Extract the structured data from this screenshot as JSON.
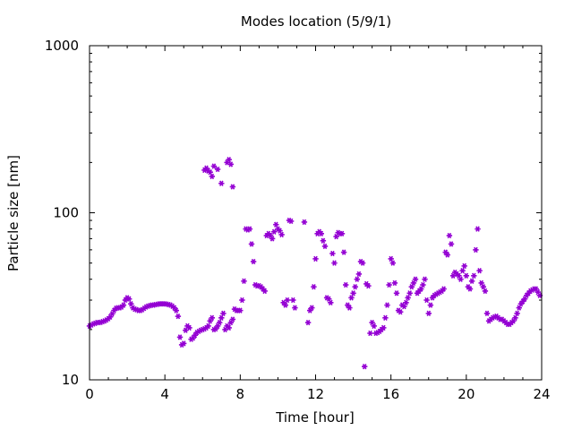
{
  "chart_data": {
    "type": "scatter",
    "title": "Modes location (5/9/1)",
    "xlabel": "Time [hour]",
    "ylabel": "Particle size [nm]",
    "xlim": [
      0,
      24
    ],
    "ylim": [
      10,
      1000
    ],
    "yscale": "log",
    "x_ticks": [
      0,
      4,
      8,
      12,
      16,
      20,
      24
    ],
    "x_tick_labels": [
      "0",
      "4",
      "8",
      "12",
      "16",
      "20",
      "24"
    ],
    "y_ticks": [
      10,
      100,
      1000
    ],
    "y_tick_labels": [
      "10",
      "100",
      "1000"
    ],
    "grid": false,
    "legend": "none",
    "marker_color": "#9400d3",
    "series": [
      {
        "points": [
          [
            0.0,
            21
          ],
          [
            0.1,
            21.3
          ],
          [
            0.2,
            21.6
          ],
          [
            0.3,
            21.8
          ],
          [
            0.4,
            22
          ],
          [
            0.5,
            22
          ],
          [
            0.6,
            22.1
          ],
          [
            0.7,
            22.3
          ],
          [
            0.8,
            22.5
          ],
          [
            0.9,
            22.8
          ],
          [
            1.0,
            23.2
          ],
          [
            1.1,
            23.8
          ],
          [
            1.2,
            24.8
          ],
          [
            1.3,
            26
          ],
          [
            1.4,
            26.8
          ],
          [
            1.5,
            27
          ],
          [
            1.6,
            27
          ],
          [
            1.7,
            27.3
          ],
          [
            1.8,
            28
          ],
          [
            1.9,
            30
          ],
          [
            2.0,
            31
          ],
          [
            2.1,
            30.5
          ],
          [
            2.2,
            28.5
          ],
          [
            2.3,
            27
          ],
          [
            2.4,
            26.5
          ],
          [
            2.5,
            26.3
          ],
          [
            2.6,
            26
          ],
          [
            2.7,
            26
          ],
          [
            2.8,
            26.3
          ],
          [
            2.9,
            26.8
          ],
          [
            3.0,
            27.3
          ],
          [
            3.1,
            27.6
          ],
          [
            3.2,
            27.8
          ],
          [
            3.3,
            28
          ],
          [
            3.4,
            28
          ],
          [
            3.5,
            28.2
          ],
          [
            3.6,
            28.3
          ],
          [
            3.7,
            28.5
          ],
          [
            3.8,
            28.5
          ],
          [
            3.9,
            28.5
          ],
          [
            4.0,
            28.5
          ],
          [
            4.1,
            28.4
          ],
          [
            4.2,
            28.2
          ],
          [
            4.3,
            28
          ],
          [
            4.4,
            27.6
          ],
          [
            4.5,
            27
          ],
          [
            4.6,
            26
          ],
          [
            4.7,
            24
          ],
          [
            4.8,
            18
          ],
          [
            4.9,
            16.2
          ],
          [
            5.0,
            16.5
          ],
          [
            5.1,
            19.8
          ],
          [
            5.2,
            21
          ],
          [
            5.3,
            20.5
          ],
          [
            5.4,
            17.5
          ],
          [
            5.5,
            17.8
          ],
          [
            5.6,
            18.5
          ],
          [
            5.7,
            19.2
          ],
          [
            5.8,
            19.5
          ],
          [
            5.9,
            19.8
          ],
          [
            6.0,
            20
          ],
          [
            6.1,
            20.2
          ],
          [
            6.2,
            20.5
          ],
          [
            6.3,
            21
          ],
          [
            6.4,
            22.5
          ],
          [
            6.5,
            23.5
          ],
          [
            6.6,
            20
          ],
          [
            6.7,
            20.2
          ],
          [
            6.8,
            21
          ],
          [
            6.9,
            22
          ],
          [
            7.0,
            23.5
          ],
          [
            7.1,
            25
          ],
          [
            7.2,
            20
          ],
          [
            7.3,
            21
          ],
          [
            7.4,
            20.5
          ],
          [
            7.5,
            22
          ],
          [
            7.6,
            23
          ],
          [
            7.7,
            26.5
          ],
          [
            7.8,
            26
          ],
          [
            7.9,
            26
          ],
          [
            8.0,
            26
          ],
          [
            8.1,
            30
          ],
          [
            8.2,
            39
          ],
          [
            8.3,
            80
          ],
          [
            8.4,
            79
          ],
          [
            8.5,
            80
          ],
          [
            8.6,
            65
          ],
          [
            8.7,
            51
          ],
          [
            8.8,
            37
          ],
          [
            8.9,
            36.5
          ],
          [
            9.0,
            36.5
          ],
          [
            9.1,
            36
          ],
          [
            9.2,
            35
          ],
          [
            9.3,
            34
          ],
          [
            9.4,
            73
          ],
          [
            9.5,
            75
          ],
          [
            9.6,
            73
          ],
          [
            9.7,
            70
          ],
          [
            9.8,
            77
          ],
          [
            9.9,
            85
          ],
          [
            10.0,
            80
          ],
          [
            10.1,
            78
          ],
          [
            10.2,
            74
          ],
          [
            10.3,
            29
          ],
          [
            10.4,
            28
          ],
          [
            10.5,
            30
          ],
          [
            10.6,
            90
          ],
          [
            10.7,
            89
          ],
          [
            10.8,
            30
          ],
          [
            10.9,
            27
          ],
          [
            11.4,
            88
          ],
          [
            11.6,
            22
          ],
          [
            11.7,
            26
          ],
          [
            11.8,
            27
          ],
          [
            11.9,
            36
          ],
          [
            12.0,
            53
          ],
          [
            12.1,
            75
          ],
          [
            12.2,
            77
          ],
          [
            12.3,
            75
          ],
          [
            12.4,
            68
          ],
          [
            12.5,
            63
          ],
          [
            12.6,
            31
          ],
          [
            12.7,
            30.5
          ],
          [
            12.8,
            29
          ],
          [
            12.9,
            57
          ],
          [
            13.0,
            50
          ],
          [
            13.1,
            72
          ],
          [
            13.2,
            76
          ],
          [
            13.3,
            75
          ],
          [
            13.4,
            75
          ],
          [
            13.5,
            58
          ],
          [
            13.6,
            37
          ],
          [
            13.7,
            28
          ],
          [
            13.8,
            27
          ],
          [
            13.9,
            31
          ],
          [
            14.0,
            33
          ],
          [
            14.1,
            36
          ],
          [
            14.2,
            40
          ],
          [
            14.3,
            43
          ],
          [
            14.4,
            51
          ],
          [
            14.5,
            50
          ],
          [
            14.6,
            12
          ],
          [
            14.7,
            37.5
          ],
          [
            14.8,
            36.5
          ],
          [
            14.9,
            19
          ],
          [
            15.0,
            22
          ],
          [
            15.1,
            21
          ],
          [
            15.2,
            19
          ],
          [
            15.3,
            19.2
          ],
          [
            15.4,
            19.5
          ],
          [
            15.5,
            20
          ],
          [
            15.6,
            20.5
          ],
          [
            15.7,
            23.5
          ],
          [
            15.8,
            28
          ],
          [
            15.9,
            37
          ],
          [
            16.0,
            53
          ],
          [
            16.1,
            50
          ],
          [
            16.2,
            38
          ],
          [
            16.3,
            33
          ],
          [
            16.4,
            26
          ],
          [
            16.5,
            25.5
          ],
          [
            16.6,
            28
          ],
          [
            16.7,
            27.5
          ],
          [
            16.8,
            29
          ],
          [
            16.9,
            31
          ],
          [
            17.0,
            33
          ],
          [
            17.1,
            36
          ],
          [
            17.2,
            38
          ],
          [
            17.3,
            40
          ],
          [
            17.4,
            33
          ],
          [
            17.5,
            34
          ],
          [
            17.6,
            35
          ],
          [
            17.7,
            37
          ],
          [
            17.8,
            40
          ],
          [
            17.9,
            30
          ],
          [
            18.0,
            25
          ],
          [
            18.1,
            28
          ],
          [
            18.2,
            31
          ],
          [
            18.3,
            32
          ],
          [
            18.4,
            32.5
          ],
          [
            18.5,
            33
          ],
          [
            18.6,
            33.5
          ],
          [
            18.7,
            34
          ],
          [
            18.8,
            35
          ],
          [
            18.9,
            58
          ],
          [
            19.0,
            56
          ],
          [
            19.1,
            73
          ],
          [
            19.2,
            65
          ],
          [
            19.3,
            42
          ],
          [
            19.4,
            44
          ],
          [
            19.5,
            43
          ],
          [
            19.6,
            42
          ],
          [
            19.7,
            40
          ],
          [
            19.8,
            45
          ],
          [
            19.9,
            48
          ],
          [
            20.0,
            42
          ],
          [
            20.1,
            36
          ],
          [
            20.2,
            35
          ],
          [
            20.3,
            39
          ],
          [
            20.4,
            42
          ],
          [
            20.5,
            60
          ],
          [
            20.6,
            80
          ],
          [
            20.7,
            45
          ],
          [
            20.8,
            38
          ],
          [
            20.9,
            36
          ],
          [
            21.0,
            34
          ],
          [
            21.1,
            25
          ],
          [
            21.2,
            22.5
          ],
          [
            21.3,
            23
          ],
          [
            21.4,
            23.5
          ],
          [
            21.5,
            23.8
          ],
          [
            21.6,
            24
          ],
          [
            21.7,
            23.5
          ],
          [
            21.8,
            23
          ],
          [
            21.9,
            23
          ],
          [
            22.0,
            22.5
          ],
          [
            22.1,
            22
          ],
          [
            22.2,
            21.5
          ],
          [
            22.3,
            21.5
          ],
          [
            22.4,
            22
          ],
          [
            22.5,
            22.5
          ],
          [
            22.6,
            23.5
          ],
          [
            22.7,
            25
          ],
          [
            22.8,
            27
          ],
          [
            22.9,
            28.5
          ],
          [
            23.0,
            29.5
          ],
          [
            23.1,
            30.5
          ],
          [
            23.2,
            32
          ],
          [
            23.3,
            33
          ],
          [
            23.4,
            34
          ],
          [
            23.5,
            34.5
          ],
          [
            23.6,
            35
          ],
          [
            23.7,
            35
          ],
          [
            23.8,
            33.5
          ],
          [
            23.9,
            32
          ],
          [
            6.1,
            180
          ],
          [
            6.2,
            185
          ],
          [
            6.3,
            178
          ],
          [
            6.4,
            175
          ],
          [
            6.5,
            165
          ],
          [
            6.6,
            190
          ],
          [
            6.8,
            182
          ],
          [
            7.0,
            150
          ],
          [
            7.3,
            200
          ],
          [
            7.4,
            208
          ],
          [
            7.5,
            195
          ],
          [
            7.6,
            143
          ]
        ]
      }
    ]
  }
}
